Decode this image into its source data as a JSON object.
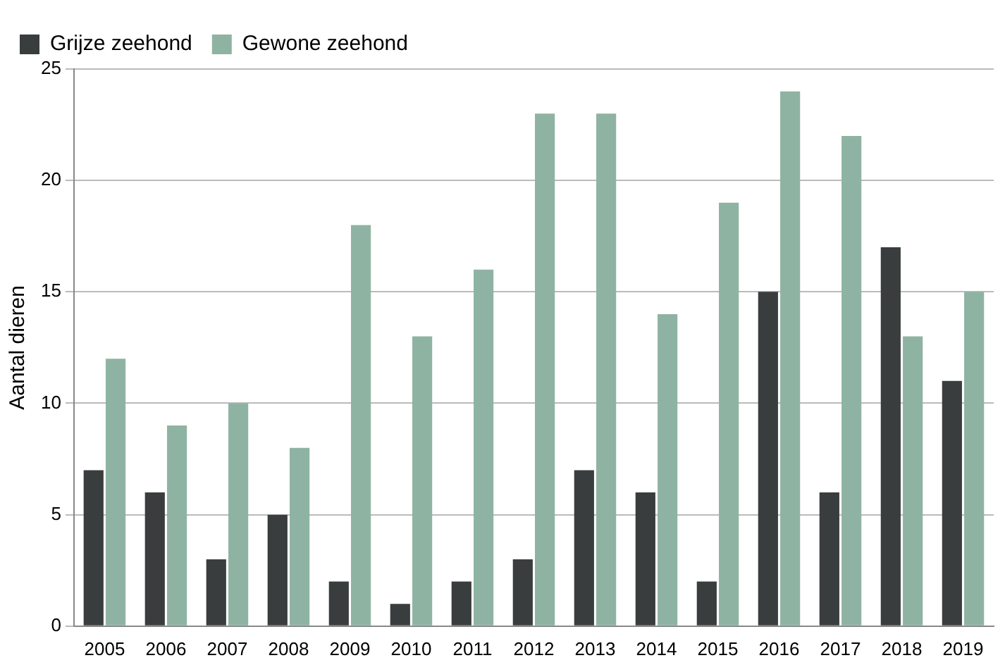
{
  "chart_data": {
    "type": "bar",
    "ylabel": "Aantal dieren",
    "categories": [
      "2005",
      "2006",
      "2007",
      "2008",
      "2009",
      "2010",
      "2011",
      "2012",
      "2013",
      "2014",
      "2015",
      "2016",
      "2017",
      "2018",
      "2019"
    ],
    "series": [
      {
        "name": "Grijze zeehond",
        "color": "#3a3d3d",
        "values": [
          7,
          6,
          3,
          5,
          2,
          1,
          2,
          3,
          7,
          6,
          2,
          15,
          6,
          17,
          11
        ]
      },
      {
        "name": "Gewone zeehond",
        "color": "#8fb3a3",
        "values": [
          12,
          9,
          10,
          8,
          18,
          13,
          16,
          23,
          23,
          14,
          19,
          24,
          22,
          13,
          15
        ]
      }
    ],
    "ylim": [
      0,
      25
    ],
    "yticks": [
      0,
      5,
      10,
      15,
      20,
      25
    ],
    "grid": "y",
    "legend": "top left"
  }
}
